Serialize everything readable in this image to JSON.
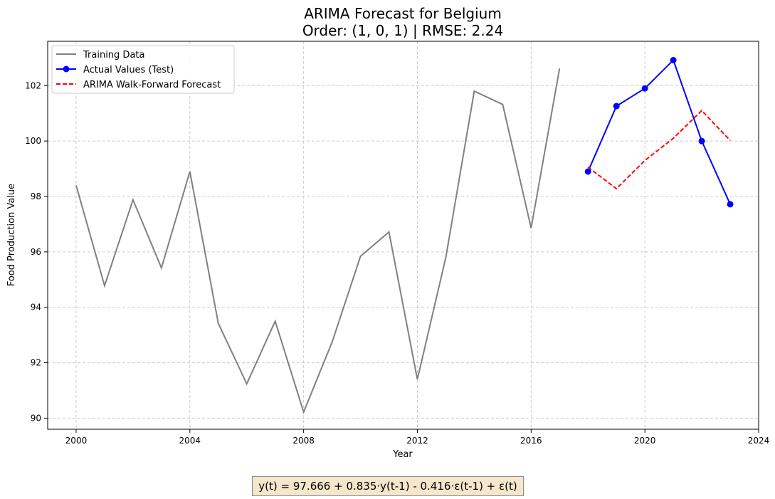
{
  "chart_data": {
    "type": "line",
    "title": [
      "ARIMA Forecast for Belgium",
      "Order: (1, 0, 1) | RMSE: 2.24"
    ],
    "xlabel": "Year",
    "ylabel": "Food Production Value",
    "xlim": [
      1999,
      2024
    ],
    "ylim": [
      89.6,
      103.6
    ],
    "x_ticks": [
      2000,
      2004,
      2008,
      2012,
      2016,
      2020,
      2024
    ],
    "y_ticks": [
      90,
      92,
      94,
      96,
      98,
      100,
      102
    ],
    "grid": true,
    "legend_position": "top-left",
    "series": [
      {
        "name": "Training Data",
        "color": "#808080",
        "style": "solid",
        "markers": false,
        "x": [
          2000,
          2001,
          2002,
          2003,
          2004,
          2005,
          2006,
          2007,
          2008,
          2009,
          2010,
          2011,
          2012,
          2013,
          2014,
          2015,
          2016,
          2017
        ],
        "y": [
          98.4,
          94.78,
          97.88,
          95.42,
          98.9,
          93.42,
          91.24,
          93.5,
          90.22,
          92.74,
          95.84,
          96.72,
          91.4,
          95.8,
          101.8,
          101.32,
          96.86,
          102.62
        ]
      },
      {
        "name": "Actual Values (Test)",
        "color": "#0000ff",
        "style": "solid",
        "markers": true,
        "x": [
          2018,
          2019,
          2020,
          2021,
          2022,
          2023
        ],
        "y": [
          98.9,
          101.26,
          101.9,
          102.92,
          100.0,
          97.72
        ]
      },
      {
        "name": "ARIMA Walk-Forward Forecast",
        "color": "#ff0000",
        "style": "dashed",
        "markers": false,
        "x": [
          2018,
          2019,
          2020,
          2021,
          2022,
          2023
        ],
        "y": [
          99.06,
          98.28,
          99.3,
          100.1,
          101.1,
          100.02
        ]
      }
    ]
  },
  "formula": "y(t) = 97.666 + 0.835·y(t-1) - 0.416·ε(t-1) + ε(t)"
}
